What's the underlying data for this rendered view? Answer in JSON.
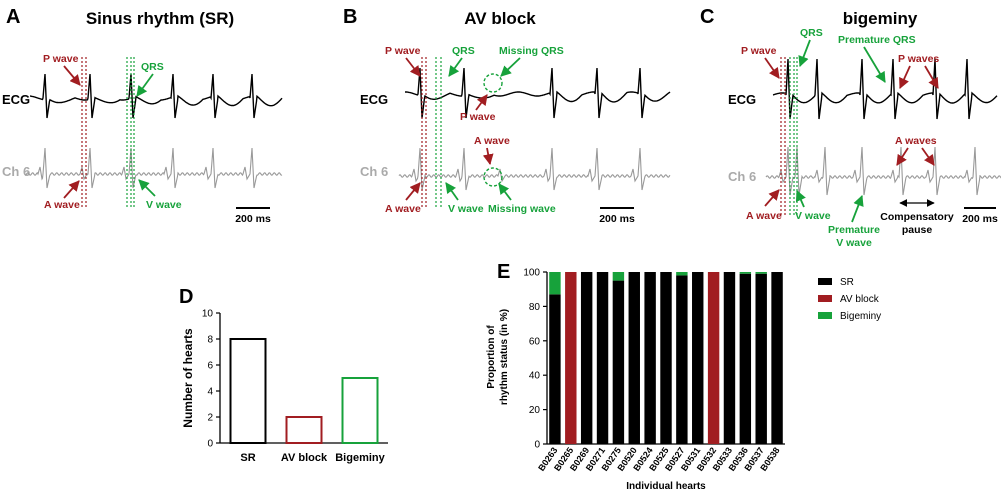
{
  "colors": {
    "red": "#a11d21",
    "green": "#17a23b",
    "black": "#000000",
    "grey": "#aaaaaa"
  },
  "panels": {
    "a": {
      "letter": "A",
      "title": "Sinus rhythm (SR)",
      "ecg": "ECG",
      "ch": "Ch 6",
      "p_wave": "P wave",
      "a_wave": "A wave",
      "qrs": "QRS",
      "v_wave": "V wave",
      "scale": "200 ms"
    },
    "b": {
      "letter": "B",
      "title": "AV block",
      "ecg": "ECG",
      "ch": "Ch 6",
      "p_wave": "P wave",
      "a_wave": "A wave",
      "qrs": "QRS",
      "v_wave": "V wave",
      "p_wave2": "P wave",
      "a_wave2": "A wave",
      "missing_qrs": "Missing QRS",
      "missing_wave": "Missing wave",
      "scale": "200 ms"
    },
    "c": {
      "letter": "C",
      "title": "bigeminy",
      "ecg": "ECG",
      "ch": "Ch 6",
      "p_wave": "P wave",
      "a_wave": "A wave",
      "qrs": "QRS",
      "v_wave": "V wave",
      "premature_qrs": "Premature QRS",
      "p_waves": "P waves",
      "a_waves": "A waves",
      "premature_v_1": "Premature",
      "premature_v_2": "V wave",
      "comp_1": "Compensatory",
      "comp_2": "pause",
      "scale": "200 ms"
    },
    "d": {
      "letter": "D"
    },
    "e": {
      "letter": "E"
    }
  },
  "chart_data": [
    {
      "type": "bar",
      "categories": [
        "SR",
        "AV block",
        "Bigeminy"
      ],
      "values": [
        8,
        2,
        5
      ],
      "bar_colors": [
        "#000000",
        "#a11d21",
        "#17a23b"
      ],
      "title": "",
      "xlabel": "",
      "ylabel": "Number of hearts",
      "ylim": [
        0,
        10
      ],
      "yticks": [
        0,
        2,
        4,
        6,
        8,
        10
      ]
    },
    {
      "type": "bar",
      "stacked": true,
      "categories": [
        "B0263",
        "B0265",
        "B0269",
        "B0271",
        "B0275",
        "B0520",
        "B0524",
        "B0525",
        "B0527",
        "B0531",
        "B0532",
        "B0533",
        "B0536",
        "B0537",
        "B0538"
      ],
      "series": [
        {
          "name": "SR",
          "color": "#000000",
          "values": [
            87,
            0,
            100,
            100,
            95,
            100,
            100,
            100,
            98,
            100,
            0,
            100,
            99,
            99,
            100
          ]
        },
        {
          "name": "AV block",
          "color": "#a11d21",
          "values": [
            0,
            100,
            0,
            0,
            0,
            0,
            0,
            0,
            0,
            0,
            100,
            0,
            0,
            0,
            0
          ]
        },
        {
          "name": "Bigeminy",
          "color": "#17a23b",
          "values": [
            13,
            0,
            0,
            0,
            5,
            0,
            0,
            0,
            2,
            0,
            0,
            0,
            1,
            1,
            0
          ]
        }
      ],
      "xlabel": "Individual hearts",
      "ylabel_line1": "Proportion of",
      "ylabel_line2": "rhythm status (in %)",
      "ylim": [
        0,
        100
      ],
      "yticks": [
        0,
        20,
        40,
        60,
        80,
        100
      ]
    }
  ]
}
